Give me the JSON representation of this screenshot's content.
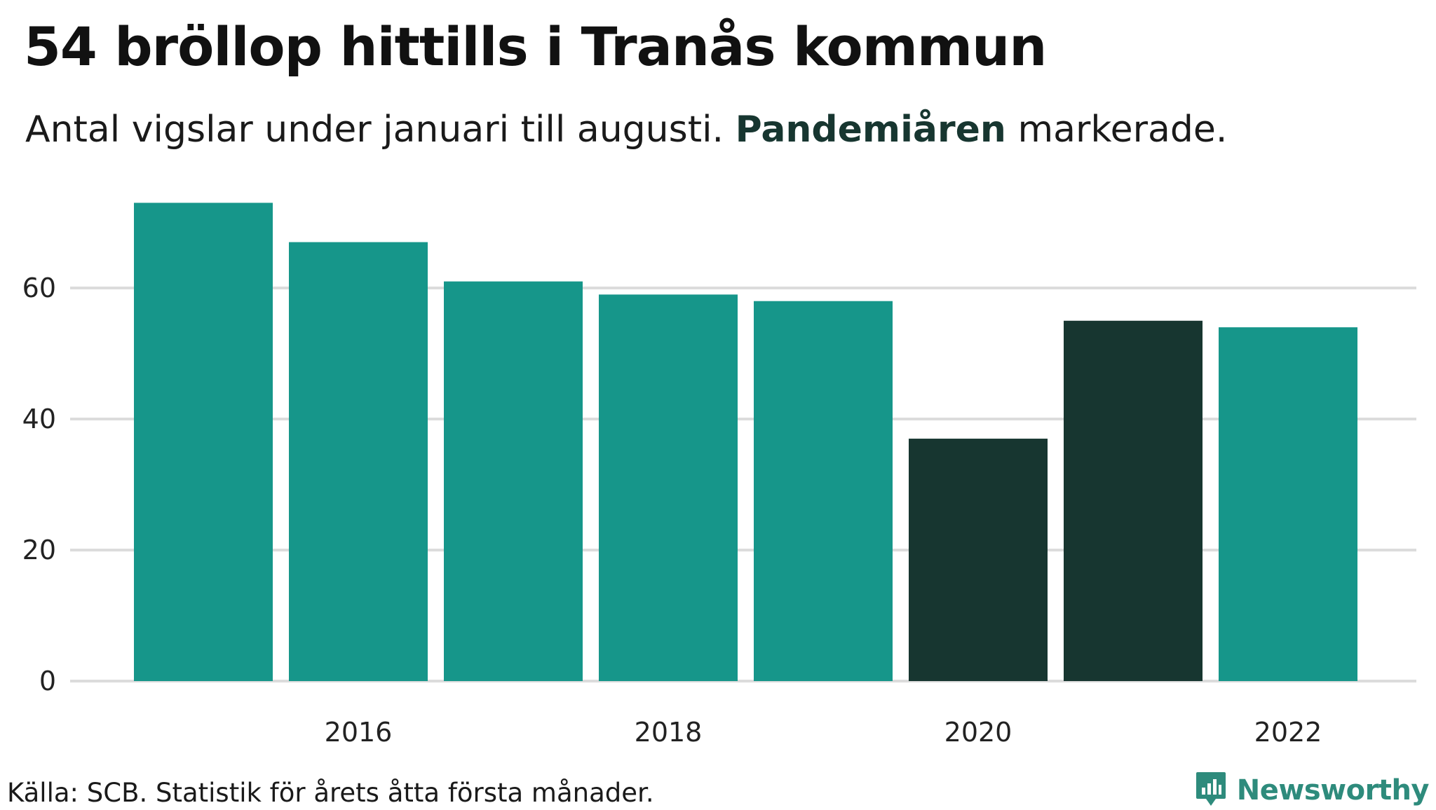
{
  "title": "54 bröllop hittills i Tranås kommun",
  "subtitle": {
    "before": "Antal vigslar under januari till augusti. ",
    "highlight": "Pandemiåren",
    "after": " markerade."
  },
  "footer": {
    "source": "Källa: SCB. Statistik för årets åtta första månader.",
    "brand": "Newsworthy"
  },
  "colors": {
    "normal": "#16968A",
    "pandemic": "#173630",
    "grid": "#DCDCDC",
    "brand": "#2E8B7C"
  },
  "chart_data": {
    "type": "bar",
    "title": "54 bröllop hittills i Tranås kommun",
    "subtitle": "Antal vigslar under januari till augusti. Pandemiåren markerade.",
    "xlabel": "",
    "ylabel": "",
    "categories": [
      "2015",
      "2016",
      "2017",
      "2018",
      "2019",
      "2020",
      "2021",
      "2022"
    ],
    "values": [
      73,
      67,
      61,
      59,
      58,
      37,
      55,
      54
    ],
    "highlighted": [
      false,
      false,
      false,
      false,
      false,
      true,
      true,
      false
    ],
    "x_tick_labels": [
      "2016",
      "2018",
      "2020",
      "2022"
    ],
    "y_ticks": [
      0,
      20,
      40,
      60
    ],
    "ylim": [
      0,
      80
    ],
    "grid": true,
    "legend": "none"
  }
}
